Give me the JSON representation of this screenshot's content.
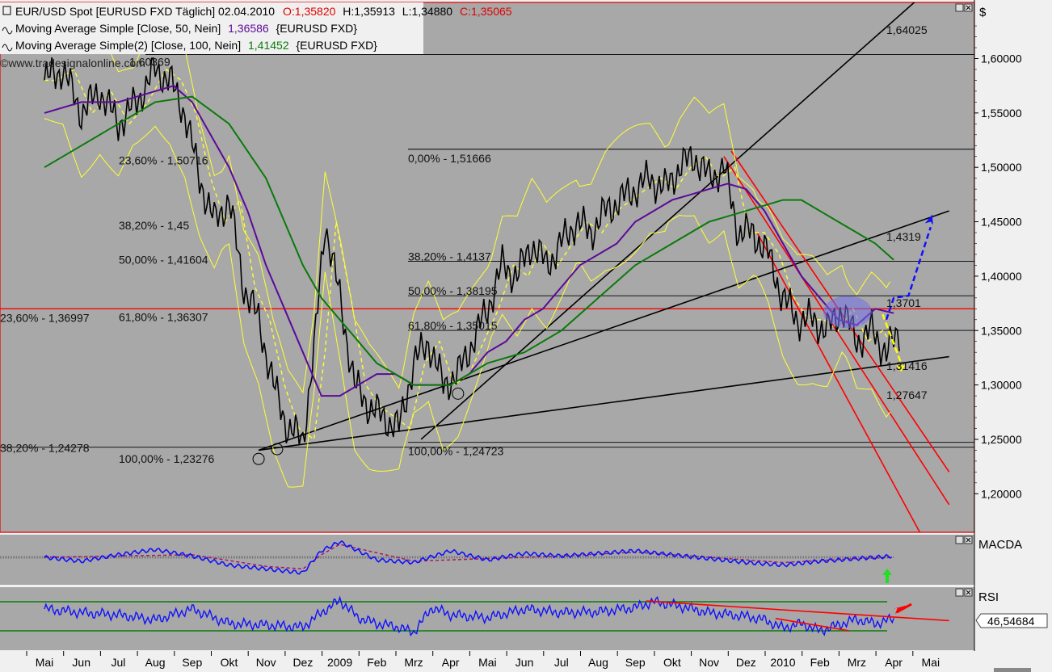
{
  "header": {
    "instrument": "EUR/USD Spot [EURUSD FXD  Täglich] 02.04.2010",
    "open": "O:1,35820",
    "high": "H:1,35913",
    "low": "L:1,34880",
    "close": "C:1,35065",
    "ma50_label": "Moving Average Simple [Close, 50, Nein]",
    "ma50_value": "1,36586",
    "ma50_src": "{EURUSD FXD}",
    "ma100_label": "Moving Average Simple(2) [Close, 100, Nein]",
    "ma100_value": "1,41452",
    "ma100_src": "{EURUSD FXD}",
    "watermark": "©www.tradesignalonline.com",
    "currency_symbol": "$"
  },
  "colors": {
    "price": "#000000",
    "ma50": "#5b0a98",
    "ma100": "#0a7a0a",
    "bollinger": "#ffff33",
    "red_channel": "#ff0000",
    "blue_arrow": "#1010ff",
    "yellow_arrow": "#ffff00",
    "macd": "#1010ff",
    "signal": "#aa1060",
    "rsi": "#1010ff",
    "rsi_levels": "#0a7a0a",
    "background": "#a8a8a8"
  },
  "chart_data": [
    {
      "type": "line",
      "title": "EUR/USD Spot [EURUSD FXD  Täglich] 02.04.2010",
      "ylabel": "$",
      "ylim": [
        1.175,
        1.645
      ],
      "y_ticks": [
        "1,60000",
        "1,55000",
        "1,50000",
        "1,45000",
        "1,40000",
        "1,35000",
        "1,30000",
        "1,25000",
        "1,20000"
      ],
      "y_tick_values": [
        1.6,
        1.55,
        1.5,
        1.45,
        1.4,
        1.35,
        1.3,
        1.25,
        1.2
      ],
      "x_months": [
        "Mai",
        "Jun",
        "Jul",
        "Aug",
        "Sep",
        "Okt",
        "Nov",
        "Dez",
        "2009",
        "Feb",
        "Mrz",
        "Apr",
        "Mai",
        "Jun",
        "Jul",
        "Aug",
        "Sep",
        "Okt",
        "Nov",
        "Dez",
        "2010",
        "Feb",
        "Mrz",
        "Apr",
        "Mai"
      ],
      "xlim": [
        0,
        24.5
      ],
      "series": [
        {
          "name": "EUR/USD Spot",
          "x": [
            0,
            0.5,
            1,
            1.5,
            2,
            2.5,
            3,
            3.4,
            3.8,
            4.2,
            4.6,
            5,
            5.4,
            5.8,
            6.2,
            6.6,
            7,
            7.3,
            7.6,
            8,
            8.4,
            8.8,
            9.2,
            9.6,
            10,
            10.4,
            10.8,
            11.2,
            11.6,
            12,
            12.4,
            12.8,
            13.2,
            13.6,
            14,
            14.4,
            14.8,
            15.2,
            15.6,
            16,
            16.4,
            16.8,
            17.2,
            17.6,
            18,
            18.4,
            18.8,
            19.2,
            19.6,
            20,
            20.4,
            20.8,
            21.2,
            21.6,
            22,
            22.4,
            22.8,
            23,
            23.2
          ],
          "y": [
            1.58,
            1.59,
            1.55,
            1.57,
            1.54,
            1.56,
            1.59,
            1.58,
            1.55,
            1.49,
            1.45,
            1.47,
            1.39,
            1.36,
            1.3,
            1.26,
            1.25,
            1.33,
            1.45,
            1.38,
            1.3,
            1.28,
            1.27,
            1.26,
            1.32,
            1.34,
            1.3,
            1.31,
            1.34,
            1.37,
            1.41,
            1.4,
            1.43,
            1.41,
            1.43,
            1.45,
            1.44,
            1.46,
            1.47,
            1.48,
            1.49,
            1.48,
            1.5,
            1.51,
            1.49,
            1.5,
            1.44,
            1.44,
            1.42,
            1.38,
            1.36,
            1.36,
            1.35,
            1.37,
            1.34,
            1.35,
            1.33,
            1.34,
            1.351
          ]
        },
        {
          "name": "Moving Average Simple [Close, 50, Nein]",
          "x": [
            0,
            1,
            2,
            3,
            3.5,
            4,
            4.5,
            5,
            5.5,
            6,
            6.5,
            7,
            7.5,
            8,
            8.5,
            9,
            9.5,
            10,
            10.5,
            11,
            11.5,
            12,
            12.5,
            13,
            13.5,
            14,
            14.5,
            15,
            15.5,
            16,
            16.5,
            17,
            17.5,
            18,
            18.5,
            19,
            19.5,
            20,
            20.5,
            21,
            21.5,
            22,
            22.5,
            23
          ],
          "y": [
            1.55,
            1.56,
            1.56,
            1.57,
            1.575,
            1.56,
            1.53,
            1.5,
            1.46,
            1.41,
            1.37,
            1.33,
            1.29,
            1.29,
            1.3,
            1.31,
            1.31,
            1.3,
            1.3,
            1.3,
            1.31,
            1.33,
            1.34,
            1.36,
            1.37,
            1.39,
            1.41,
            1.42,
            1.43,
            1.45,
            1.46,
            1.47,
            1.475,
            1.48,
            1.485,
            1.48,
            1.46,
            1.43,
            1.4,
            1.38,
            1.36,
            1.355,
            1.37,
            1.366
          ]
        },
        {
          "name": "Moving Average Simple(2) [Close, 100, Nein]",
          "x": [
            0,
            1,
            2,
            3,
            4,
            5,
            6,
            6.5,
            7,
            7.5,
            8,
            8.5,
            9,
            9.5,
            10,
            10.5,
            11,
            11.5,
            12,
            12.5,
            13,
            14,
            15,
            16,
            17,
            18,
            19,
            20,
            20.5,
            21,
            21.5,
            22,
            22.5,
            23
          ],
          "y": [
            1.5,
            1.52,
            1.54,
            1.56,
            1.565,
            1.54,
            1.49,
            1.45,
            1.41,
            1.38,
            1.36,
            1.34,
            1.32,
            1.31,
            1.3,
            1.3,
            1.3,
            1.31,
            1.32,
            1.325,
            1.33,
            1.35,
            1.38,
            1.41,
            1.43,
            1.45,
            1.46,
            1.47,
            1.47,
            1.46,
            1.45,
            1.44,
            1.43,
            1.415
          ]
        }
      ],
      "fib_levels_left": [
        {
          "label": "1,60369",
          "value": 1.60369
        },
        {
          "label": "23,60% - 1,50716",
          "value": 1.50716
        },
        {
          "label": "38,20% - 1,45",
          "value": 1.4475
        },
        {
          "label": "50,00% - 1,41604",
          "value": 1.41604
        },
        {
          "label": "61,80% - 1,36307",
          "value": 1.36307
        },
        {
          "label": "100,00% - 1,23276",
          "value": 1.23276
        }
      ],
      "fib_levels_right": [
        {
          "label": "0,00% - 1,51666",
          "value": 1.51666
        },
        {
          "label": "38,20% - 1,4137",
          "value": 1.4137
        },
        {
          "label": "50,00% - 1,38195",
          "value": 1.38195
        },
        {
          "label": "61,80% - 1,35015",
          "value": 1.35015
        },
        {
          "label": "100,00% - 1,24723",
          "value": 1.24723
        }
      ],
      "outer_levels": [
        {
          "label": "23,60% - 1,36997",
          "value": 1.36997
        },
        {
          "label": "38,20% - 1,24278",
          "value": 1.24278
        }
      ],
      "annotations": [
        {
          "label": "1,64025",
          "value": 1.64025
        },
        {
          "label": "1,4319",
          "value": 1.4319
        },
        {
          "label": "1,3701",
          "value": 1.3701
        },
        {
          "label": "1,31416",
          "value": 1.31416
        },
        {
          "label": "1,27647",
          "value": 1.27647
        }
      ],
      "grid": false
    },
    {
      "type": "line",
      "title": "MACDA",
      "series": [
        {
          "name": "MACD",
          "x": [
            0,
            1,
            2,
            3,
            4,
            5,
            6,
            7,
            7.5,
            8,
            9,
            10,
            11,
            12,
            13,
            14,
            15,
            16,
            17,
            18,
            19,
            20,
            21,
            22,
            23
          ],
          "y": [
            0,
            -0.3,
            0.2,
            0.6,
            0.1,
            -0.6,
            -0.9,
            -1.2,
            0.5,
            1.2,
            -0.2,
            -0.4,
            0.5,
            -0.2,
            0.3,
            0.1,
            0.3,
            0.5,
            0.2,
            -0.1,
            -0.4,
            -0.6,
            -0.3,
            -0.1,
            0.1
          ]
        },
        {
          "name": "Signal",
          "x": [
            0,
            2,
            4,
            6,
            7,
            7.5,
            8,
            10,
            12,
            14,
            16,
            18,
            20,
            22,
            23
          ],
          "y": [
            0,
            0.1,
            0.2,
            -0.7,
            -0.9,
            0.2,
            1.0,
            -0.3,
            -0.1,
            0.1,
            0.4,
            0.0,
            -0.4,
            -0.1,
            0.0
          ]
        }
      ]
    },
    {
      "type": "line",
      "title": "RSI",
      "ylim": [
        20,
        80
      ],
      "levels": [
        70,
        30
      ],
      "current_value": "46,54684",
      "series": [
        {
          "name": "RSI",
          "x": [
            0,
            1,
            2,
            3,
            4,
            5,
            6,
            7,
            7.5,
            8,
            8.5,
            9,
            9.5,
            10,
            10.5,
            11,
            12,
            13,
            14,
            15,
            16,
            16.5,
            17,
            18,
            19,
            19.5,
            20,
            20.5,
            21,
            21.5,
            22,
            22.5,
            23
          ],
          "y": [
            60,
            55,
            52,
            45,
            60,
            40,
            38,
            35,
            55,
            72,
            48,
            40,
            36,
            28,
            62,
            52,
            48,
            60,
            55,
            56,
            62,
            70,
            66,
            55,
            50,
            45,
            34,
            40,
            30,
            38,
            46,
            40,
            46.5
          ]
        }
      ]
    }
  ]
}
